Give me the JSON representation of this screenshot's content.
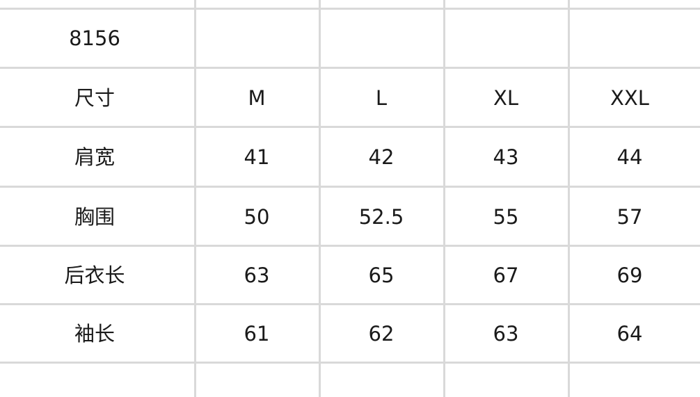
{
  "table": {
    "title": "8156",
    "rows": [
      [
        "尺寸",
        "M",
        "L",
        "XL",
        "XXL"
      ],
      [
        "肩宽",
        "41",
        "42",
        "43",
        "44"
      ],
      [
        "胸围",
        "50",
        "52.5",
        "55",
        "57"
      ],
      [
        "后衣长",
        "63",
        "65",
        "67",
        "69"
      ],
      [
        "袖长",
        "61",
        "62",
        "63",
        "64"
      ]
    ]
  },
  "colors": {
    "grid": "#d9d9d9",
    "text": "#1a1a1a"
  }
}
